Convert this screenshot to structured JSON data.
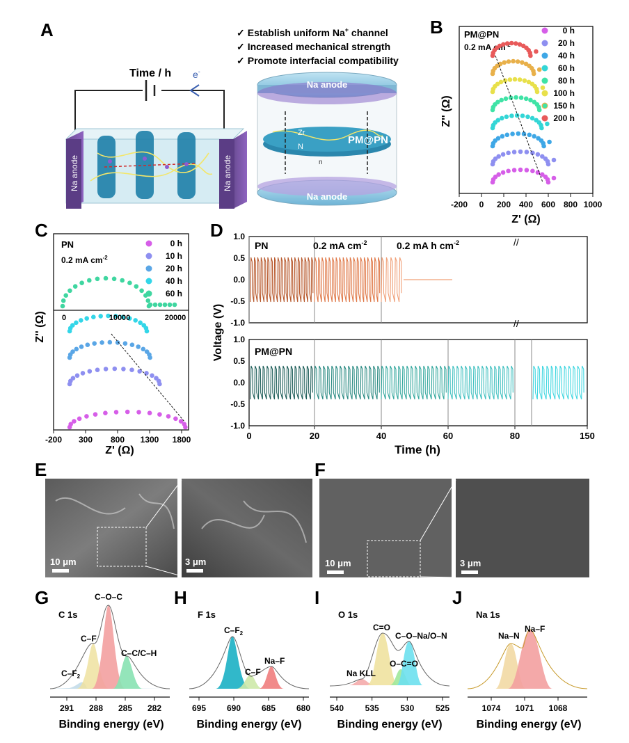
{
  "panels": {
    "A": {
      "label": "A",
      "circuit_label": "Time / h",
      "electron": "e",
      "electron_sup": "-",
      "anode_left": "Na anode",
      "anode_right": "Na anode",
      "bullets": [
        {
          "check": "✓",
          "text": "Establish uniform Na",
          "sup": "+",
          "tail": " channel"
        },
        {
          "check": "✓",
          "text": "Increased mechanical strength",
          "sup": "",
          "tail": ""
        },
        {
          "check": "✓",
          "text": "Promote interfacial compatibility",
          "sup": "",
          "tail": ""
        }
      ],
      "stack_top": "Na anode",
      "stack_bottom": "Na anode",
      "stack_mid": "PM@PN",
      "atom_zr": "Zr",
      "atom_n": "N",
      "subscript_n": "n"
    },
    "B": {
      "label": "B",
      "title": "PM@PN",
      "current": "0.2 mA cm",
      "current_sup": "-2",
      "legend": [
        {
          "name": "0 h",
          "color": "#d65ee8"
        },
        {
          "name": "20 h",
          "color": "#8e8ff0"
        },
        {
          "name": "40 h",
          "color": "#3ea7e6"
        },
        {
          "name": "60 h",
          "color": "#33d6d6"
        },
        {
          "name": "80 h",
          "color": "#3fe3a6"
        },
        {
          "name": "100 h",
          "color": "#e8e04a"
        },
        {
          "name": "150 h",
          "color": "#e8b04a"
        },
        {
          "name": "200 h",
          "color": "#e85a5a"
        }
      ],
      "xlabel": "Z' (Ω)",
      "ylabel": "Z'' (Ω)",
      "xticks": [
        "-200",
        "0",
        "200",
        "400",
        "600",
        "800",
        "1000"
      ]
    },
    "C": {
      "label": "C",
      "title": "PN",
      "current": "0.2 mA cm",
      "current_sup": "-2",
      "legend": [
        {
          "name": "0 h",
          "color": "#d65ee8"
        },
        {
          "name": "10 h",
          "color": "#8e8ff0"
        },
        {
          "name": "20 h",
          "color": "#5aa6e6"
        },
        {
          "name": "40 h",
          "color": "#33d6e8"
        },
        {
          "name": "60 h",
          "color": "#3fd6a0"
        }
      ],
      "inset_xticks": [
        "0",
        "10000",
        "20000"
      ],
      "xlabel": "Z' (Ω)",
      "ylabel": "Z'' (Ω)",
      "xticks": [
        "-200",
        "300",
        "800",
        "1300",
        "1800"
      ]
    },
    "D": {
      "label": "D",
      "top_title": "PN",
      "current": "0.2 mA cm",
      "current_sup": "-2",
      "capacity": "0.2 mA h cm",
      "capacity_sup": "-2",
      "bottom_title": "PM@PN",
      "ylabel": "Voltage (V)",
      "xlabel": "Time (h)",
      "yticks": [
        "-1.0",
        "-0.5",
        "0.0",
        "0.5",
        "1.0"
      ],
      "xticks": [
        "0",
        "20",
        "40",
        "60",
        "80",
        "150"
      ]
    },
    "E": {
      "label": "E",
      "scale_left": "10 μm",
      "scale_right": "3 μm"
    },
    "F": {
      "label": "F",
      "scale_left": "10 μm",
      "scale_right": "3 μm"
    },
    "G": {
      "label": "G",
      "title": "C 1s",
      "peaks": [
        "C–O–C",
        "C–F",
        "C–C/C–H",
        "C–F",
        "2"
      ],
      "xticks": [
        "291",
        "288",
        "285",
        "282"
      ],
      "xlabel": "Binding energy (eV)"
    },
    "H": {
      "label": "H",
      "title": "F 1s",
      "peaks": [
        "C–F",
        "2",
        "C–F",
        "Na–F"
      ],
      "xticks": [
        "695",
        "690",
        "685",
        "680"
      ],
      "xlabel": "Binding energy (eV)"
    },
    "I": {
      "label": "I",
      "title": "O 1s",
      "peaks": [
        "C=O",
        "C–O–Na/O–N",
        "O–C=O",
        "Na KLL"
      ],
      "xticks": [
        "540",
        "535",
        "530",
        "525"
      ],
      "xlabel": "Binding energy (eV)"
    },
    "J": {
      "label": "J",
      "title": "Na 1s",
      "peaks": [
        "Na–N",
        "Na–F"
      ],
      "xticks": [
        "1074",
        "1071",
        "1068"
      ],
      "xlabel": "Binding energy (eV)"
    }
  },
  "chart_data": [
    {
      "type": "scatter",
      "panel": "B",
      "xlabel": "Z' (Ω)",
      "ylabel": "Z'' (Ω)",
      "xlim": [
        -200,
        1000
      ],
      "series": [
        {
          "name": "0 h",
          "semicircle_x": [
            100,
            600
          ]
        },
        {
          "name": "20 h",
          "semicircle_x": [
            100,
            600
          ]
        },
        {
          "name": "40 h",
          "semicircle_x": [
            100,
            560
          ]
        },
        {
          "name": "60 h",
          "semicircle_x": [
            100,
            540
          ]
        },
        {
          "name": "80 h",
          "semicircle_x": [
            100,
            520
          ]
        },
        {
          "name": "100 h",
          "semicircle_x": [
            100,
            500
          ]
        },
        {
          "name": "150 h",
          "semicircle_x": [
            100,
            470
          ]
        },
        {
          "name": "200 h",
          "semicircle_x": [
            100,
            440
          ]
        }
      ]
    },
    {
      "type": "scatter",
      "panel": "C",
      "xlabel": "Z' (Ω)",
      "ylabel": "Z'' (Ω)",
      "xlim": [
        -200,
        1900
      ],
      "series": [
        {
          "name": "0 h",
          "semicircle_x": [
            50,
            1850
          ]
        },
        {
          "name": "10 h",
          "semicircle_x": [
            50,
            1450
          ]
        },
        {
          "name": "20 h",
          "semicircle_x": [
            50,
            1300
          ]
        },
        {
          "name": "40 h",
          "semicircle_x": [
            50,
            1250
          ]
        },
        {
          "name": "60 h",
          "semicircle_x": [
            0,
            20000
          ]
        }
      ]
    },
    {
      "type": "line",
      "panel": "D",
      "xlabel": "Time (h)",
      "ylabel": "Voltage (V)",
      "xlim": [
        0,
        150
      ],
      "ylim": [
        -1.0,
        1.0
      ],
      "series": [
        {
          "name": "PN",
          "amplitude": 0.6,
          "short_circuit_after_h": 46
        },
        {
          "name": "PM@PN",
          "amplitude": 0.45
        }
      ]
    }
  ]
}
